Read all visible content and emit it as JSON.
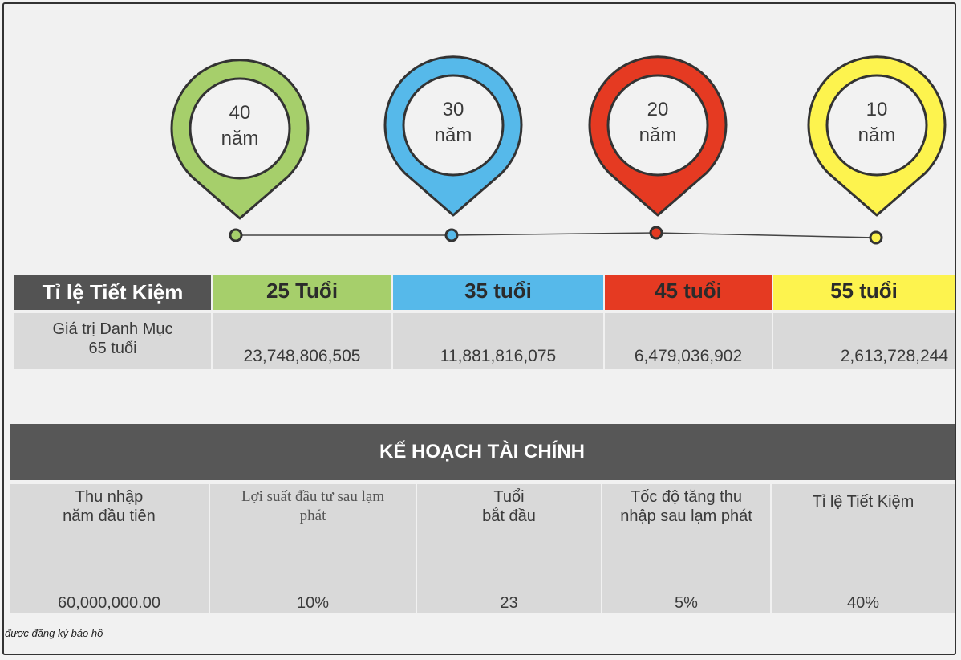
{
  "pins": [
    {
      "number": "40",
      "unit": "năm",
      "color": "#a6cf6b"
    },
    {
      "number": "30",
      "unit": "năm",
      "color": "#56b9ea"
    },
    {
      "number": "20",
      "unit": "năm",
      "color": "#e53a22"
    },
    {
      "number": "10",
      "unit": "năm",
      "color": "#fdf34e"
    }
  ],
  "savings_table": {
    "header_label": "Tỉ lệ Tiết Kiệm",
    "ages": [
      {
        "label": "25 Tuổi",
        "color": "#a6cf6b"
      },
      {
        "label": "35 tuổi",
        "color": "#56b9ea"
      },
      {
        "label": "45 tuổi",
        "color": "#e53a22"
      },
      {
        "label": "55 tuổi",
        "color": "#fdf34e"
      }
    ],
    "row_label_line1": "Giá trị Danh Mục",
    "row_label_line2": "65 tuổi",
    "values": [
      "23,748,806,505",
      "11,881,816,075",
      "6,479,036,902",
      "2,613,728,244"
    ]
  },
  "plan": {
    "title": "KẾ HOẠCH TÀI CHÍNH",
    "columns": [
      {
        "line1": "Thu nhập",
        "line2": "năm đầu tiên",
        "value": "60,000,000.00"
      },
      {
        "line1": "Lợi suất đầu tư sau lạm",
        "line2": "phát",
        "value": "10%"
      },
      {
        "line1": "Tuổi",
        "line2": "bắt đầu",
        "value": "23"
      },
      {
        "line1": "Tốc độ tăng thu",
        "line2": "nhập sau lạm phát",
        "value": "5%"
      },
      {
        "line1": "",
        "line2": "Tỉ lệ Tiết Kiệm",
        "value": "40%"
      }
    ]
  },
  "footer": "được đăng ký bảo hộ"
}
